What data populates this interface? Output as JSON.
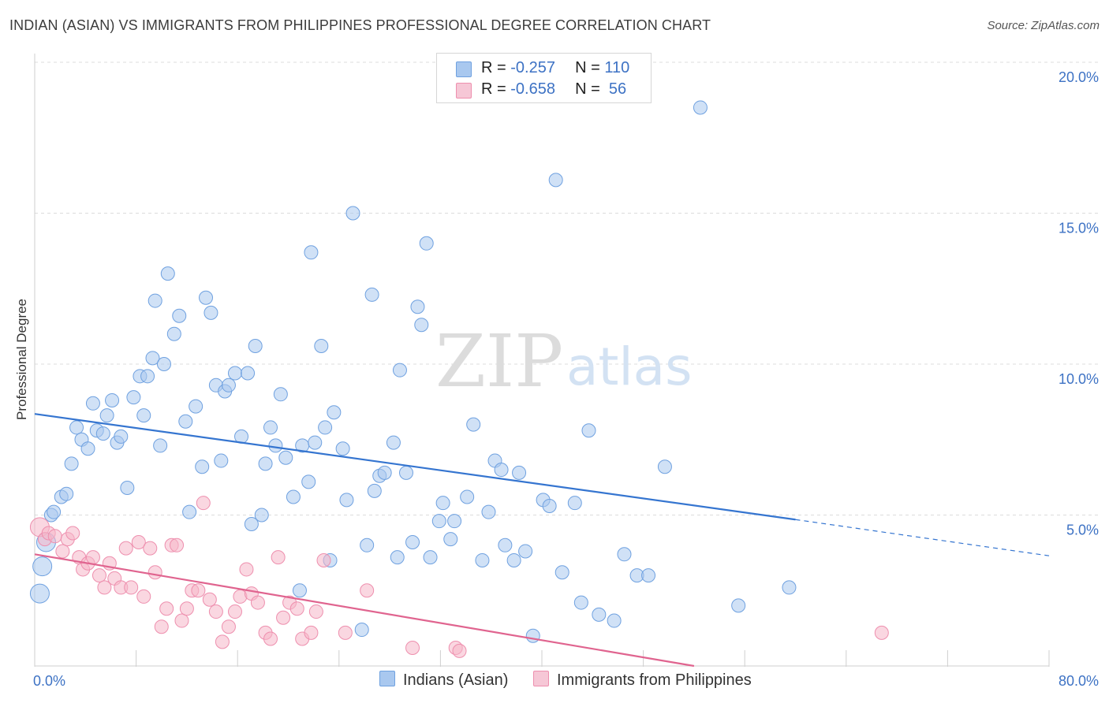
{
  "title": "INDIAN (ASIAN) VS IMMIGRANTS FROM PHILIPPINES PROFESSIONAL DEGREE CORRELATION CHART",
  "source": "Source: ZipAtlas.com",
  "watermark": {
    "zip": "ZIP",
    "atlas": "atlas"
  },
  "legend": {
    "rows": [
      {
        "r_label": "R = ",
        "r_value": "-0.257",
        "n_label": "N = ",
        "n_value": "110",
        "color": "#a9c8ef"
      },
      {
        "r_label": "R = ",
        "r_value": "-0.658",
        "n_label": "N = ",
        "n_value": " 56",
        "color": "#f6b6c9"
      }
    ]
  },
  "bottom_legend": [
    {
      "label": "Indians (Asian)",
      "color": "#a9c8ef"
    },
    {
      "label": "Immigrants from Philippines",
      "color": "#f6b6c9"
    }
  ],
  "chart_data": {
    "type": "scatter",
    "title": "INDIAN (ASIAN) VS IMMIGRANTS FROM PHILIPPINES PROFESSIONAL DEGREE CORRELATION CHART",
    "xlabel": "",
    "ylabel": "Professional Degree",
    "xlim": [
      0,
      80
    ],
    "ylim": [
      0,
      20
    ],
    "x_tick_labels": [
      "0.0%",
      "80.0%"
    ],
    "y_ticks": [
      5,
      10,
      15,
      20
    ],
    "y_tick_labels": [
      "5.0%",
      "10.0%",
      "15.0%",
      "20.0%"
    ],
    "grid": "horizontal dashed",
    "legend_placement": "top-center",
    "series": [
      {
        "name": "Indians (Asian)",
        "color": "#6fa1e0",
        "fill": "#a9c8ef",
        "trend": {
          "x0": 0,
          "y0": 8.35,
          "x1": 60,
          "y1": 4.85,
          "dash_to_x": 80,
          "dash_to_y": 3.65,
          "color": "#3575d0"
        },
        "points": [
          [
            0.4,
            2.4
          ],
          [
            0.6,
            3.3
          ],
          [
            0.9,
            4.1
          ],
          [
            1.3,
            5.0
          ],
          [
            1.5,
            5.1
          ],
          [
            2.1,
            5.6
          ],
          [
            2.5,
            5.7
          ],
          [
            2.9,
            6.7
          ],
          [
            3.3,
            7.9
          ],
          [
            3.7,
            7.5
          ],
          [
            4.2,
            7.2
          ],
          [
            4.6,
            8.7
          ],
          [
            4.9,
            7.8
          ],
          [
            5.4,
            7.7
          ],
          [
            5.7,
            8.3
          ],
          [
            6.1,
            8.8
          ],
          [
            6.5,
            7.4
          ],
          [
            6.8,
            7.6
          ],
          [
            7.3,
            5.9
          ],
          [
            7.8,
            8.9
          ],
          [
            8.3,
            9.6
          ],
          [
            8.6,
            8.3
          ],
          [
            8.9,
            9.6
          ],
          [
            9.3,
            10.2
          ],
          [
            9.5,
            12.1
          ],
          [
            9.9,
            7.3
          ],
          [
            10.2,
            10.0
          ],
          [
            10.5,
            13.0
          ],
          [
            11.0,
            11.0
          ],
          [
            11.4,
            11.6
          ],
          [
            11.9,
            8.1
          ],
          [
            12.2,
            5.1
          ],
          [
            12.7,
            8.6
          ],
          [
            13.2,
            6.6
          ],
          [
            13.5,
            12.2
          ],
          [
            13.9,
            11.7
          ],
          [
            14.3,
            9.3
          ],
          [
            14.7,
            6.8
          ],
          [
            15.0,
            9.1
          ],
          [
            15.3,
            9.3
          ],
          [
            15.8,
            9.7
          ],
          [
            16.3,
            7.6
          ],
          [
            16.8,
            9.7
          ],
          [
            17.1,
            4.7
          ],
          [
            17.4,
            10.6
          ],
          [
            17.9,
            5.0
          ],
          [
            18.2,
            6.7
          ],
          [
            18.6,
            7.9
          ],
          [
            19.0,
            7.3
          ],
          [
            19.4,
            9.0
          ],
          [
            19.8,
            6.9
          ],
          [
            20.4,
            5.6
          ],
          [
            20.9,
            2.5
          ],
          [
            21.1,
            7.3
          ],
          [
            21.6,
            6.1
          ],
          [
            21.8,
            13.7
          ],
          [
            22.1,
            7.4
          ],
          [
            22.6,
            10.6
          ],
          [
            22.9,
            7.9
          ],
          [
            23.3,
            3.5
          ],
          [
            23.6,
            8.4
          ],
          [
            24.3,
            7.2
          ],
          [
            24.6,
            5.5
          ],
          [
            25.1,
            15.0
          ],
          [
            25.8,
            1.2
          ],
          [
            26.2,
            4.0
          ],
          [
            26.6,
            12.3
          ],
          [
            26.8,
            5.8
          ],
          [
            27.2,
            6.3
          ],
          [
            27.6,
            6.4
          ],
          [
            28.3,
            7.4
          ],
          [
            28.6,
            3.6
          ],
          [
            28.8,
            9.8
          ],
          [
            29.3,
            6.4
          ],
          [
            29.8,
            4.1
          ],
          [
            30.2,
            11.9
          ],
          [
            30.5,
            11.3
          ],
          [
            30.9,
            14.0
          ],
          [
            31.2,
            3.6
          ],
          [
            31.9,
            4.8
          ],
          [
            32.2,
            5.4
          ],
          [
            32.8,
            4.2
          ],
          [
            33.1,
            4.8
          ],
          [
            34.1,
            5.6
          ],
          [
            34.6,
            8.0
          ],
          [
            35.3,
            3.5
          ],
          [
            35.8,
            5.1
          ],
          [
            36.3,
            6.8
          ],
          [
            36.8,
            6.5
          ],
          [
            37.1,
            4.0
          ],
          [
            37.8,
            3.5
          ],
          [
            38.2,
            6.4
          ],
          [
            38.7,
            3.8
          ],
          [
            39.3,
            1.0
          ],
          [
            40.1,
            5.5
          ],
          [
            40.6,
            5.3
          ],
          [
            41.1,
            16.1
          ],
          [
            41.6,
            3.1
          ],
          [
            42.6,
            5.4
          ],
          [
            43.1,
            2.1
          ],
          [
            43.7,
            7.8
          ],
          [
            44.5,
            1.7
          ],
          [
            45.7,
            1.5
          ],
          [
            46.5,
            3.7
          ],
          [
            47.5,
            3.0
          ],
          [
            48.4,
            3.0
          ],
          [
            49.7,
            6.6
          ],
          [
            52.5,
            18.5
          ],
          [
            55.5,
            2.0
          ],
          [
            59.5,
            2.6
          ]
        ]
      },
      {
        "name": "Immigrants from Philippines",
        "color": "#ee8fae",
        "fill": "#f6b6c9",
        "trend": {
          "x0": 0,
          "y0": 3.7,
          "x1": 52,
          "y1": 0.0,
          "color": "#e0648f"
        },
        "points": [
          [
            0.4,
            4.6
          ],
          [
            0.8,
            4.2
          ],
          [
            1.1,
            4.4
          ],
          [
            1.6,
            4.3
          ],
          [
            2.2,
            3.8
          ],
          [
            2.6,
            4.2
          ],
          [
            3.0,
            4.4
          ],
          [
            3.5,
            3.6
          ],
          [
            3.8,
            3.2
          ],
          [
            4.2,
            3.4
          ],
          [
            4.6,
            3.6
          ],
          [
            5.1,
            3.0
          ],
          [
            5.5,
            2.6
          ],
          [
            5.9,
            3.4
          ],
          [
            6.3,
            2.9
          ],
          [
            6.8,
            2.6
          ],
          [
            7.2,
            3.9
          ],
          [
            7.6,
            2.6
          ],
          [
            8.2,
            4.1
          ],
          [
            8.6,
            2.3
          ],
          [
            9.1,
            3.9
          ],
          [
            9.5,
            3.1
          ],
          [
            10.0,
            1.3
          ],
          [
            10.4,
            1.9
          ],
          [
            10.8,
            4.0
          ],
          [
            11.2,
            4.0
          ],
          [
            11.6,
            1.5
          ],
          [
            12.0,
            1.9
          ],
          [
            12.4,
            2.5
          ],
          [
            12.9,
            2.5
          ],
          [
            13.3,
            5.4
          ],
          [
            13.8,
            2.2
          ],
          [
            14.3,
            1.8
          ],
          [
            14.8,
            0.8
          ],
          [
            15.3,
            1.3
          ],
          [
            15.8,
            1.8
          ],
          [
            16.2,
            2.3
          ],
          [
            16.7,
            3.2
          ],
          [
            17.1,
            2.4
          ],
          [
            17.6,
            2.1
          ],
          [
            18.2,
            1.1
          ],
          [
            18.6,
            0.9
          ],
          [
            19.2,
            3.6
          ],
          [
            19.6,
            1.6
          ],
          [
            20.1,
            2.1
          ],
          [
            20.7,
            1.9
          ],
          [
            21.1,
            0.9
          ],
          [
            21.8,
            1.1
          ],
          [
            22.2,
            1.8
          ],
          [
            22.8,
            3.5
          ],
          [
            24.5,
            1.1
          ],
          [
            26.2,
            2.5
          ],
          [
            29.8,
            0.6
          ],
          [
            33.2,
            0.6
          ],
          [
            33.5,
            0.5
          ],
          [
            66.8,
            1.1
          ]
        ]
      }
    ]
  }
}
